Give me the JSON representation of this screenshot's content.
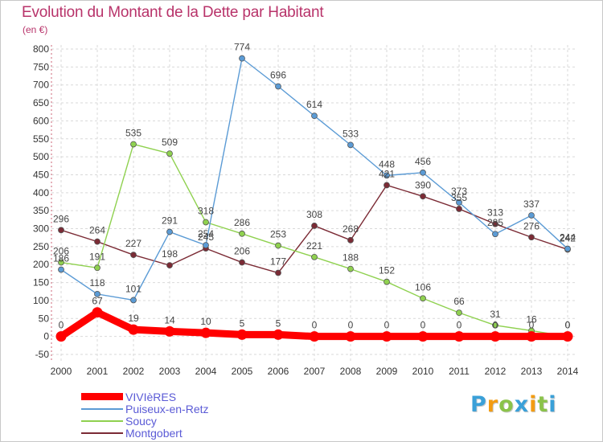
{
  "page": {
    "title": "Evolution du Montant de la Dette par Habitant",
    "subtitle": "(en €)"
  },
  "chart_data": {
    "type": "line",
    "title": "Evolution du Montant de la Dette par Habitant",
    "subtitle": "(en €)",
    "xlabel": "",
    "ylabel": "",
    "x": [
      "2000",
      "2001",
      "2002",
      "2003",
      "2004",
      "2005",
      "2006",
      "2007",
      "2008",
      "2009",
      "2010",
      "2011",
      "2012",
      "2013",
      "2014"
    ],
    "ylim": [
      -50,
      800
    ],
    "yticks": [
      "-50",
      "0",
      "50",
      "100",
      "150",
      "200",
      "250",
      "300",
      "350",
      "400",
      "450",
      "500",
      "550",
      "600",
      "650",
      "700",
      "750",
      "800"
    ],
    "grid": true,
    "legend_position": "bottom-left",
    "series": [
      {
        "name": "VIVIèRES",
        "color": "#ff0000",
        "values": [
          0,
          67,
          19,
          14,
          10,
          5,
          5,
          0,
          0,
          0,
          0,
          0,
          0,
          0,
          0
        ]
      },
      {
        "name": "Puiseux-en-Retz",
        "color": "#5b9bd5",
        "values": [
          186,
          118,
          101,
          291,
          254,
          774,
          696,
          614,
          533,
          448,
          456,
          373,
          285,
          337,
          244
        ]
      },
      {
        "name": "Soucy",
        "color": "#8fd14f",
        "values": [
          206,
          191,
          535,
          509,
          318,
          286,
          253,
          221,
          188,
          152,
          106,
          66,
          31,
          16,
          0
        ]
      },
      {
        "name": "Montgobert",
        "color": "#7b2b35",
        "values": [
          296,
          264,
          227,
          198,
          245,
          206,
          177,
          308,
          268,
          421,
          390,
          355,
          313,
          276,
          242
        ]
      }
    ]
  },
  "brand": {
    "letters": [
      {
        "ch": "P",
        "color": "#3aa0d8"
      },
      {
        "ch": "r",
        "color": "#f39c12"
      },
      {
        "ch": "o",
        "color": "#8bc34a"
      },
      {
        "ch": "x",
        "color": "#3aa0d8"
      },
      {
        "ch": "i",
        "color": "#f39c12"
      },
      {
        "ch": "t",
        "color": "#8bc34a"
      },
      {
        "ch": "i",
        "color": "#3aa0d8"
      }
    ]
  }
}
